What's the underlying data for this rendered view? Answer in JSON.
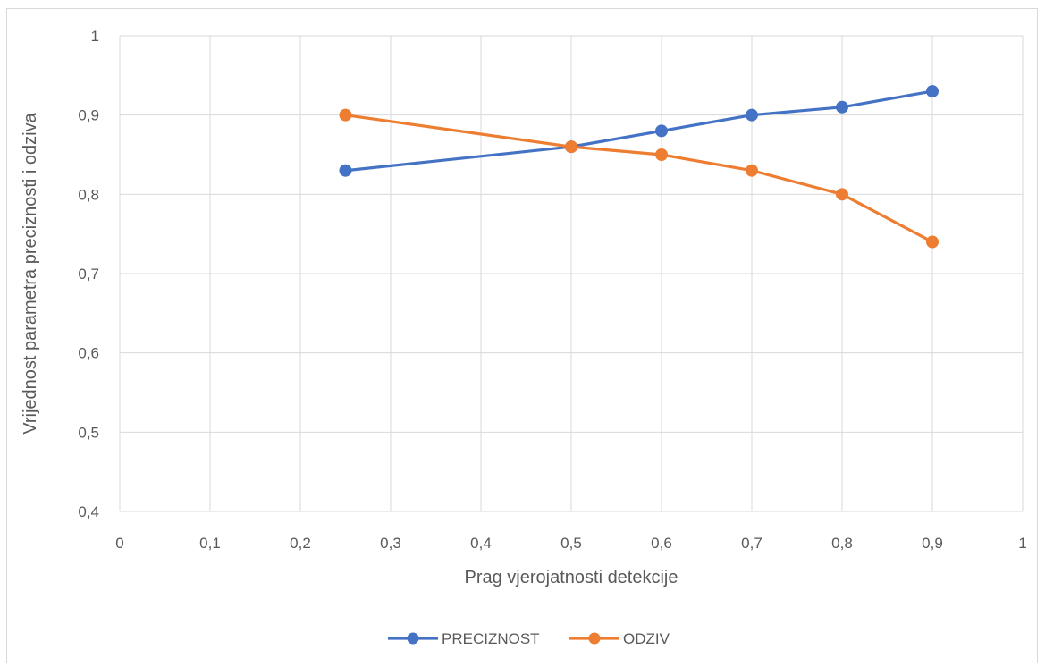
{
  "chart_data": {
    "type": "line",
    "xlabel": "Prag vjerojatnosti detekcije",
    "ylabel": "Vrijednost parametra preciznosti i odziva",
    "xlim": [
      0,
      1
    ],
    "ylim": [
      0.4,
      1
    ],
    "x_ticks": [
      "0",
      "0,1",
      "0,2",
      "0,3",
      "0,4",
      "0,5",
      "0,6",
      "0,7",
      "0,8",
      "0,9",
      "1"
    ],
    "y_ticks": [
      "0,4",
      "0,5",
      "0,6",
      "0,7",
      "0,8",
      "0,9",
      "1"
    ],
    "grid": true,
    "legend_position": "bottom",
    "series": [
      {
        "name": "PRECIZNOST",
        "color": "#4472C4",
        "x": [
          0.25,
          0.5,
          0.6,
          0.7,
          0.8,
          0.9
        ],
        "y": [
          0.83,
          0.86,
          0.88,
          0.9,
          0.91,
          0.93
        ]
      },
      {
        "name": "ODZIV",
        "color": "#ED7D31",
        "x": [
          0.25,
          0.5,
          0.6,
          0.7,
          0.8,
          0.9
        ],
        "y": [
          0.9,
          0.86,
          0.85,
          0.83,
          0.8,
          0.74
        ]
      }
    ]
  }
}
